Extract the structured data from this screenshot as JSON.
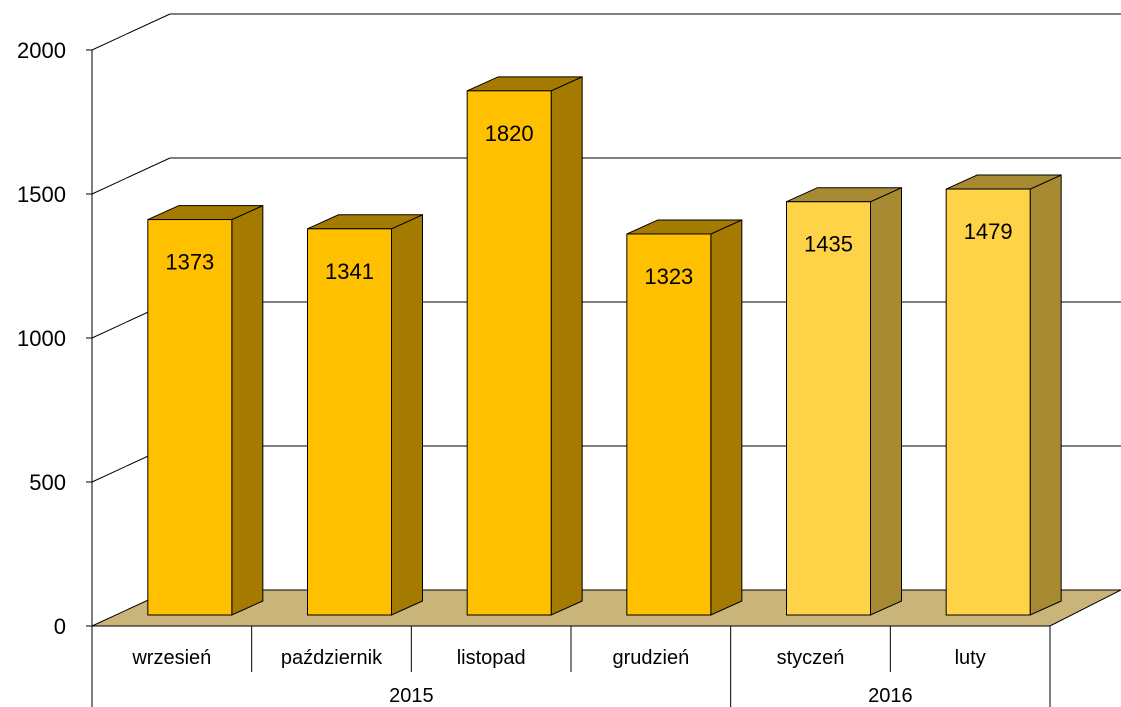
{
  "chart_data": {
    "type": "bar",
    "style": "3d-column",
    "categories": [
      "wrzesień",
      "październik",
      "listopad",
      "grudzień",
      "styczeń",
      "luty"
    ],
    "groups": [
      {
        "label": "2015",
        "span": 4
      },
      {
        "label": "2016",
        "span": 2
      }
    ],
    "values": [
      1373,
      1341,
      1820,
      1323,
      1435,
      1479
    ],
    "value_labels": [
      "1373",
      "1341",
      "1820",
      "1323",
      "1435",
      "1479"
    ],
    "bar_colors": [
      "#FFC000",
      "#FFC000",
      "#FFC000",
      "#FFC000",
      "#FFD347",
      "#FFD347"
    ],
    "side_colors": [
      "#A57A00",
      "#A57A00",
      "#A57A00",
      "#A57A00",
      "#A88A33",
      "#A88A33"
    ],
    "floor_color": "#C9B47A",
    "ylim": [
      0,
      2000
    ],
    "yticks": [
      0,
      500,
      1000,
      1500,
      2000
    ],
    "ytick_labels": [
      "0",
      "500",
      "1000",
      "1500",
      "2000"
    ],
    "grid": true,
    "legend": "none",
    "title": "",
    "xlabel": "",
    "ylabel": ""
  }
}
